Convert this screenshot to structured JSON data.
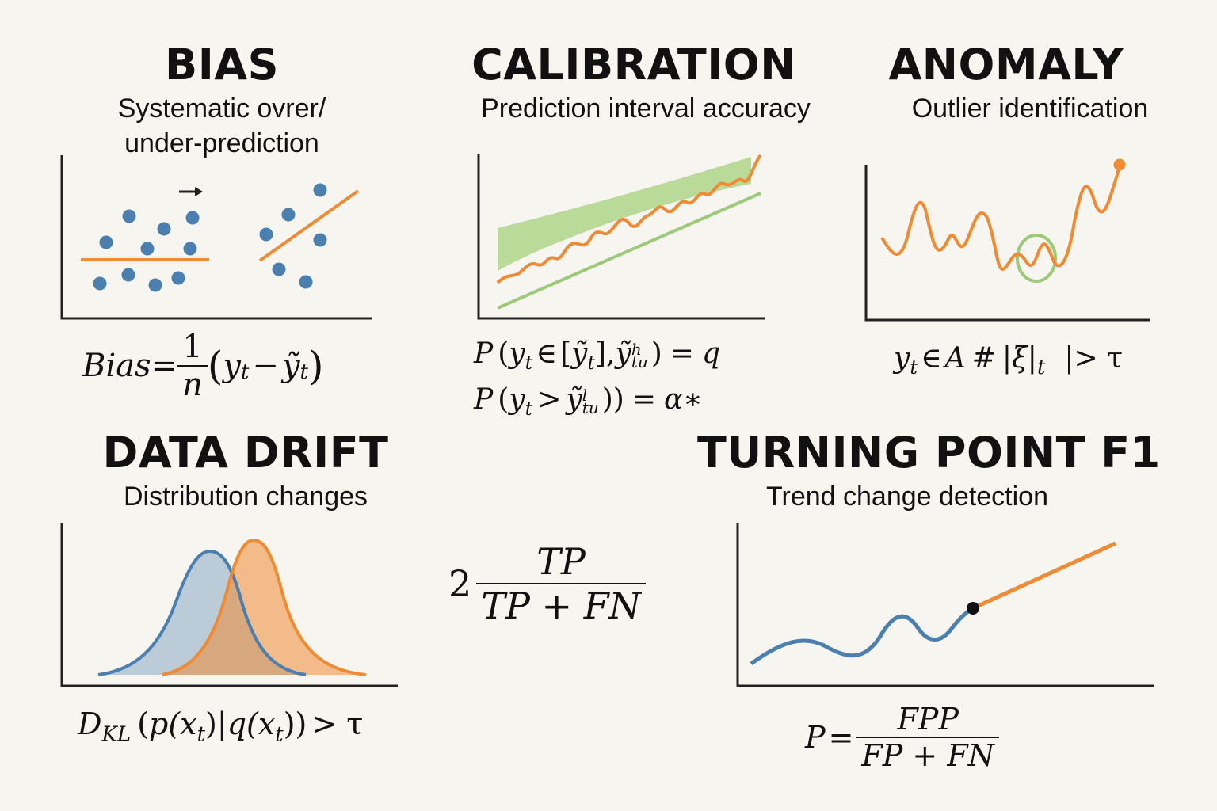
{
  "panels": {
    "bias": {
      "title": "BIAS",
      "subtitle_line1": "Systematic ovrer/",
      "subtitle_line2": "under-prediction",
      "formula": {
        "lhs": "Bias",
        "eq": "=",
        "frac_num": "1",
        "frac_den": "n",
        "open": "(",
        "term1": "y",
        "term1_sub": "t",
        "minus": "−",
        "term2": "ỹ",
        "term2_sub": "t",
        "close": ")"
      }
    },
    "calibration": {
      "title": "CALIBRATION",
      "subtitle": "Prediction interval accuracy",
      "formula_line1": {
        "p": "P",
        "open": "(",
        "y": "y",
        "y_sub": "t",
        "in": "∈",
        "bracket_open": "[",
        "ylow": "ỹ",
        "ylow_sub": "t",
        "bracket_close": "],",
        "yhigh": "ỹ",
        "yhigh_sup": "h",
        "yhigh_sub": "tu",
        "close": ")",
        "eq": "=",
        "rhs": "q"
      },
      "formula_line2": {
        "p": "P",
        "open": "(",
        "y": "y",
        "y_sub": "t",
        "gt": ">",
        "yl": "ỹ",
        "yl_sup": "l",
        "yl_sub": "tu",
        "close": "))",
        "eq": "=",
        "rhs": "α∗"
      }
    },
    "anomaly": {
      "title": "ANOMALY",
      "subtitle": "Outlier identification",
      "formula": {
        "y": "y",
        "y_sub": "t",
        "in": "∈",
        "set": "A",
        "hash": "#",
        "bar_open": "|",
        "xi": "ξ",
        "bar_close": "|",
        "xi_sub": "t",
        "gap": "",
        "rhs": "|> τ"
      }
    },
    "data_drift": {
      "title": "DATA DRIFT",
      "subtitle": "Distribution changes",
      "formula": {
        "d": "D",
        "d_sub": "KL",
        "open": "(",
        "p": "p",
        "p_arg": "(x",
        "p_arg_sub": "t",
        "p_close": ")",
        "sep": "|",
        "q": "q",
        "q_arg": "(x",
        "q_arg_sub": "t",
        "q_close": "))",
        "rhs": "> τ"
      }
    },
    "center_formula": {
      "coef": "2",
      "num": "TP",
      "den": "TP + FN"
    },
    "turning_point": {
      "title": "TURNING POINT F1",
      "subtitle": "Trend change detection",
      "formula": {
        "lhs": "P",
        "eq": "=",
        "num": "FPP",
        "den": "FP + FN"
      }
    }
  },
  "colors": {
    "blue": "#4a7fb0",
    "orange": "#ef8a35",
    "green": "#9cc97a",
    "green_fill": "#b6d894",
    "axis": "#222222",
    "background": "#f7f5ef"
  }
}
